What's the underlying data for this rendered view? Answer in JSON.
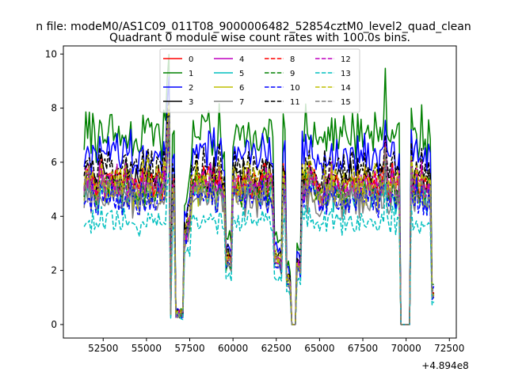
{
  "chart_data": {
    "type": "line",
    "suptitle": "n file: modeM0/AS1C09_011T08_9000006482_52854cztM0_level2_quad_clean",
    "title": "Quadrant 0 module wise count rates with 100.0s bins.",
    "xlabel": "",
    "ylabel": "",
    "x_offset_label": "+4.894e8",
    "xlim": [
      50200,
      72900
    ],
    "ylim": [
      -0.5,
      10.3
    ],
    "x_ticks": [
      52500,
      55000,
      57500,
      60000,
      62500,
      65000,
      67500,
      70000,
      72500
    ],
    "x_tick_labels": [
      "52500",
      "55000",
      "57500",
      "60000",
      "62500",
      "65000",
      "67500",
      "70000",
      "72500"
    ],
    "y_ticks": [
      0,
      2,
      4,
      6,
      8,
      10
    ],
    "y_tick_labels": [
      "0",
      "2",
      "4",
      "6",
      "8",
      "10"
    ],
    "x_start": 51400,
    "x_end": 71600,
    "bin_width": 100,
    "gaps": [
      {
        "start": 56380,
        "end": 56480,
        "level": 0.5
      },
      {
        "start": 56650,
        "end": 57150,
        "level": 0.4
      },
      {
        "start": 63350,
        "end": 63650,
        "level": 0.0
      },
      {
        "start": 69700,
        "end": 70200,
        "level": 0.0
      }
    ],
    "dips": [
      {
        "start": 57200,
        "end": 57500,
        "level": 0.7
      },
      {
        "start": 59600,
        "end": 59950,
        "level": 0.45
      },
      {
        "start": 62400,
        "end": 62850,
        "level": 0.45
      },
      {
        "start": 63100,
        "end": 63300,
        "level": 0.3
      },
      {
        "start": 63700,
        "end": 63900,
        "level": 0.4
      },
      {
        "start": 71450,
        "end": 71600,
        "level": 0.2
      }
    ],
    "spikes": [
      {
        "x": 56250,
        "factor": 1.35
      },
      {
        "x": 62800,
        "factor": 1.3
      },
      {
        "x": 68800,
        "factor": 1.25
      }
    ],
    "series": [
      {
        "name": "0",
        "color": "#ff0000",
        "dash": "solid",
        "mean": 5.2
      },
      {
        "name": "1",
        "color": "#008000",
        "dash": "solid",
        "mean": 7.0
      },
      {
        "name": "2",
        "color": "#0000ff",
        "dash": "solid",
        "mean": 6.3
      },
      {
        "name": "3",
        "color": "#000000",
        "dash": "solid",
        "mean": 5.4
      },
      {
        "name": "4",
        "color": "#bf00bf",
        "dash": "solid",
        "mean": 5.1
      },
      {
        "name": "5",
        "color": "#00bfbf",
        "dash": "solid",
        "mean": 4.8
      },
      {
        "name": "6",
        "color": "#bfbf00",
        "dash": "solid",
        "mean": 4.9
      },
      {
        "name": "7",
        "color": "#808080",
        "dash": "solid",
        "mean": 4.6
      },
      {
        "name": "8",
        "color": "#ff0000",
        "dash": "dashed",
        "mean": 5.3
      },
      {
        "name": "9",
        "color": "#008000",
        "dash": "dashed",
        "mean": 5.0
      },
      {
        "name": "10",
        "color": "#0000ff",
        "dash": "dashed",
        "mean": 4.7
      },
      {
        "name": "11",
        "color": "#000000",
        "dash": "dashed",
        "mean": 5.8
      },
      {
        "name": "12",
        "color": "#bf00bf",
        "dash": "dashed",
        "mean": 5.2
      },
      {
        "name": "13",
        "color": "#00bfbf",
        "dash": "dashed",
        "mean": 3.8
      },
      {
        "name": "14",
        "color": "#bfbf00",
        "dash": "dashed",
        "mean": 5.4
      },
      {
        "name": "15",
        "color": "#808080",
        "dash": "dashed",
        "mean": 5.0
      }
    ],
    "legend_position": "top-center",
    "grid": false
  }
}
